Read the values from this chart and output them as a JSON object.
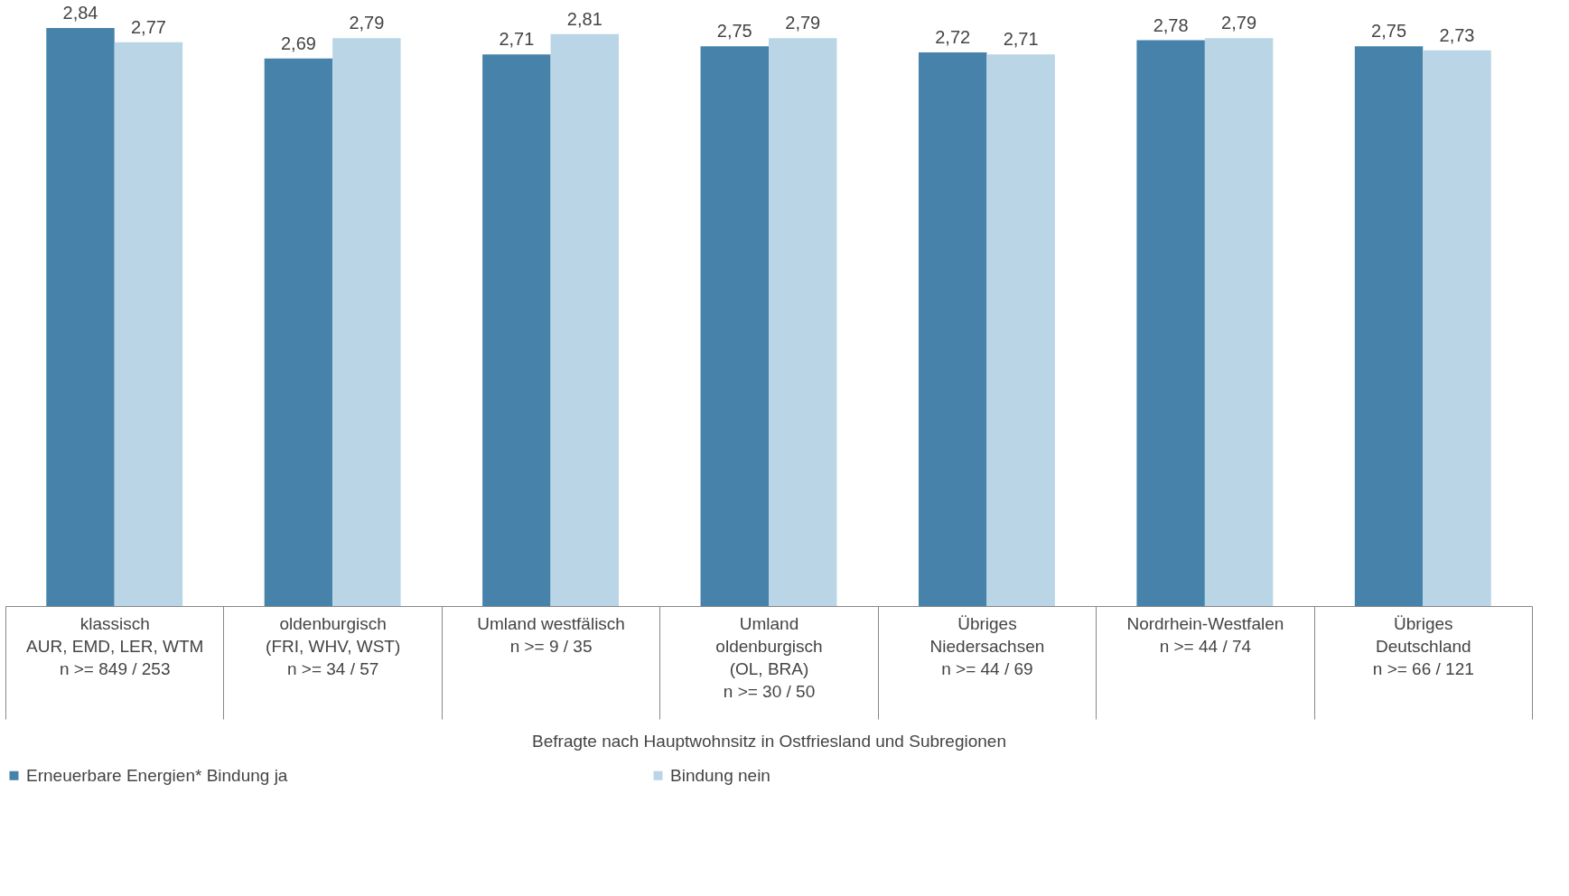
{
  "chart_data": {
    "type": "bar",
    "xlabel": "Befragte nach Hauptwohnsitz in Ostfriesland und Subregionen",
    "categories": [
      "klassisch\nAUR, EMD, LER, WTM\nn >= 849  /  253",
      "oldenburgisch\n(FRI, WHV, WST)\nn >= 34  /  57",
      "Umland westfälisch\nn >= 9  /  35",
      "Umland\noldenburgisch\n(OL, BRA)\nn >= 30  /  50",
      "Übriges\nNiedersachsen\nn >= 44  /  69",
      "Nordrhein-Westfalen\nn >= 44  /  74",
      "Übriges\nDeutschland\nn >= 66  /  121"
    ],
    "series": [
      {
        "name": "Erneuerbare Energien* Bindung ja",
        "color": "#4682aa",
        "values": [
          2.84,
          2.69,
          2.71,
          2.75,
          2.72,
          2.78,
          2.75
        ],
        "value_labels": [
          "2,84",
          "2,69",
          "2,71",
          "2,75",
          "2,72",
          "2,78",
          "2,75"
        ]
      },
      {
        "name": "Bindung nein",
        "color": "#b9d5e6",
        "values": [
          2.77,
          2.79,
          2.81,
          2.79,
          2.71,
          2.79,
          2.73
        ],
        "value_labels": [
          "2,77",
          "2,79",
          "2,81",
          "2,79",
          "2,71",
          "2,79",
          "2,73"
        ]
      }
    ],
    "legend": "bottom",
    "grid": false
  }
}
